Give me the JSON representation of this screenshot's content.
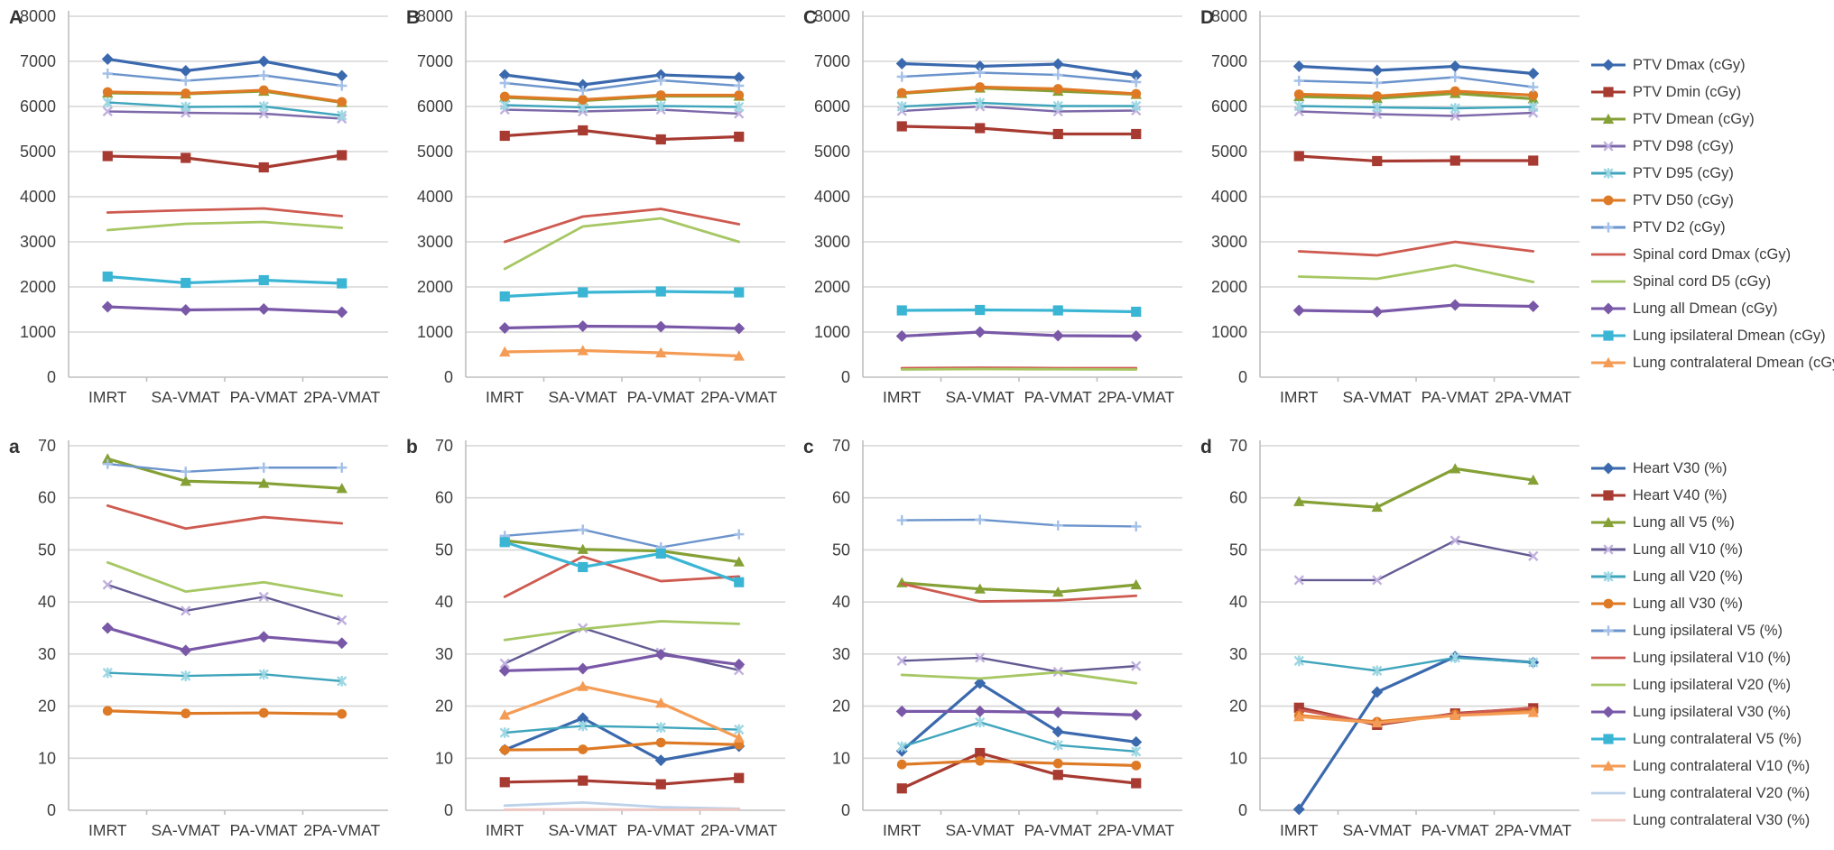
{
  "figure": {
    "description": "Eight-panel dose metric comparison line charts",
    "categories": [
      "IMRT",
      "SA-VMAT",
      "PA-VMAT",
      "2PA-VMAT"
    ],
    "grid_color": "#d6d6d6",
    "axis_color": "#bfbfbf",
    "tick_label_color": "#3f3f3f"
  },
  "chart_data": {
    "type": "line",
    "categories": [
      "IMRT",
      "SA-VMAT",
      "PA-VMAT",
      "2PA-VMAT"
    ],
    "series_top": [
      {
        "name": "PTV Dmax (cGy)",
        "color": "#3b69ae",
        "marker": "diamond"
      },
      {
        "name": "PTV Dmin (cGy)",
        "color": "#a73a31",
        "marker": "square"
      },
      {
        "name": "PTV Dmean (cGy)",
        "color": "#85a035",
        "marker": "triangle"
      },
      {
        "name": "PTV D98 (cGy)",
        "color": "#7d68a9",
        "marker": "x",
        "marker_color": "#c0b0de"
      },
      {
        "name": "PTV D95 (cGy)",
        "color": "#3fa5bc",
        "marker": "star",
        "marker_color": "#9ed7e3"
      },
      {
        "name": "PTV D50 (cGy)",
        "color": "#de7a26",
        "marker": "circle"
      },
      {
        "name": "PTV D2 (cGy)",
        "color": "#6b94cc",
        "marker": "plus",
        "marker_color": "#a3c0e8"
      },
      {
        "name": "Spinal cord Dmax (cGy)",
        "color": "#ce5a50",
        "marker": "none"
      },
      {
        "name": "Spinal cord D5 (cGy)",
        "color": "#a6c763",
        "marker": "none"
      },
      {
        "name": "Lung all Dmean (cGy)",
        "color": "#7a58a8",
        "marker": "diamond"
      },
      {
        "name": "Lung ipsilateral Dmean (cGy)",
        "color": "#3bb5d4",
        "marker": "square"
      },
      {
        "name": "Lung contralateral Dmean (cGy)",
        "color": "#f49c55",
        "marker": "triangle"
      }
    ],
    "series_bottom": [
      {
        "name": "Heart V30 (%)",
        "color": "#3b69ae",
        "marker": "diamond"
      },
      {
        "name": "Heart V40 (%)",
        "color": "#a73a31",
        "marker": "square"
      },
      {
        "name": "Lung all V5 (%)",
        "color": "#85a035",
        "marker": "triangle"
      },
      {
        "name": "Lung all V10 (%)",
        "color": "#645a93",
        "marker": "x",
        "marker_color": "#c0b0de"
      },
      {
        "name": "Lung all V20 (%)",
        "color": "#3fa5bc",
        "marker": "star",
        "marker_color": "#9ed7e3"
      },
      {
        "name": "Lung all V30 (%)",
        "color": "#de7a26",
        "marker": "circle"
      },
      {
        "name": "Lung ipsilateral V5 (%)",
        "color": "#6b94cc",
        "marker": "plus",
        "marker_color": "#a3c0e8"
      },
      {
        "name": "Lung ipsilateral V10 (%)",
        "color": "#ce5a50",
        "marker": "none"
      },
      {
        "name": "Lung ipsilateral V20 (%)",
        "color": "#a6c763",
        "marker": "none"
      },
      {
        "name": "Lung ipsilateral V30 (%)",
        "color": "#7a58a8",
        "marker": "diamond"
      },
      {
        "name": "Lung contralateral V5 (%)",
        "color": "#3bb5d4",
        "marker": "square"
      },
      {
        "name": "Lung contralateral V10 (%)",
        "color": "#f49c55",
        "marker": "triangle"
      },
      {
        "name": "Lung contralateral V20 (%)",
        "color": "#bcd2ea",
        "marker": "none"
      },
      {
        "name": "Lung contralateral V30 (%)",
        "color": "#efc7c2",
        "marker": "none"
      }
    ],
    "panels": [
      {
        "label": "A",
        "row": "top",
        "ylim": [
          0,
          8000
        ],
        "ytick": 1000,
        "values": [
          [
            7050,
            6790,
            7000,
            6680
          ],
          [
            4900,
            4860,
            4650,
            4920
          ],
          [
            6300,
            6280,
            6340,
            6090
          ],
          [
            5890,
            5860,
            5840,
            5730
          ],
          [
            6090,
            5990,
            6000,
            5800
          ],
          [
            6320,
            6290,
            6360,
            6100
          ],
          [
            6730,
            6570,
            6690,
            6460
          ],
          [
            3650,
            3700,
            3740,
            3570
          ],
          [
            3260,
            3400,
            3440,
            3310
          ],
          [
            1560,
            1490,
            1510,
            1440
          ],
          [
            2230,
            2090,
            2150,
            2080
          ],
          null
        ]
      },
      {
        "label": "B",
        "row": "top",
        "ylim": [
          0,
          8000
        ],
        "ytick": 1000,
        "values": [
          [
            6700,
            6480,
            6700,
            6640
          ],
          [
            5350,
            5470,
            5270,
            5330
          ],
          [
            6200,
            6130,
            6230,
            6230
          ],
          [
            5930,
            5890,
            5930,
            5840
          ],
          [
            6030,
            5980,
            6010,
            5990
          ],
          [
            6220,
            6150,
            6250,
            6250
          ],
          [
            6520,
            6350,
            6580,
            6460
          ],
          [
            3000,
            3560,
            3730,
            3390
          ],
          [
            2400,
            3340,
            3520,
            3000
          ],
          [
            1090,
            1130,
            1120,
            1080
          ],
          [
            1790,
            1880,
            1900,
            1880
          ],
          [
            560,
            590,
            540,
            470
          ]
        ]
      },
      {
        "label": "C",
        "row": "top",
        "ylim": [
          0,
          8000
        ],
        "ytick": 1000,
        "values": [
          [
            6950,
            6890,
            6940,
            6690
          ],
          [
            5560,
            5520,
            5390,
            5390
          ],
          [
            6290,
            6410,
            6340,
            6270
          ],
          [
            5900,
            6000,
            5890,
            5910
          ],
          [
            6000,
            6080,
            6010,
            6010
          ],
          [
            6300,
            6430,
            6390,
            6280
          ],
          [
            6660,
            6750,
            6700,
            6540
          ],
          [
            200,
            210,
            200,
            200
          ],
          [
            170,
            180,
            175,
            170
          ],
          [
            910,
            1000,
            920,
            910
          ],
          [
            1480,
            1490,
            1480,
            1450
          ],
          null
        ]
      },
      {
        "label": "D",
        "row": "top",
        "ylim": [
          0,
          8000
        ],
        "ytick": 1000,
        "values": [
          [
            6890,
            6800,
            6890,
            6730
          ],
          [
            4900,
            4790,
            4800,
            4800
          ],
          [
            6220,
            6180,
            6290,
            6170
          ],
          [
            5890,
            5830,
            5790,
            5860
          ],
          [
            6010,
            5980,
            5960,
            5990
          ],
          [
            6270,
            6230,
            6340,
            6250
          ],
          [
            6570,
            6520,
            6650,
            6430
          ],
          [
            2790,
            2700,
            3000,
            2790
          ],
          [
            2230,
            2180,
            2480,
            2110
          ],
          [
            1480,
            1450,
            1600,
            1570
          ],
          null,
          null
        ]
      },
      {
        "label": "a",
        "row": "bottom",
        "ylim": [
          0,
          70
        ],
        "ytick": 10,
        "values": [
          null,
          null,
          [
            67.5,
            63.2,
            62.8,
            61.8
          ],
          [
            43.3,
            38.3,
            41.0,
            36.5
          ],
          [
            26.4,
            25.8,
            26.1,
            24.8
          ],
          [
            19.1,
            18.6,
            18.7,
            18.5
          ],
          [
            66.5,
            65.0,
            65.8,
            65.8
          ],
          [
            58.5,
            54.1,
            56.3,
            55.1
          ],
          [
            47.6,
            42.0,
            43.8,
            41.2
          ],
          [
            35.0,
            30.7,
            33.3,
            32.1
          ],
          null,
          null,
          null,
          null
        ]
      },
      {
        "label": "b",
        "row": "bottom",
        "ylim": [
          0,
          70
        ],
        "ytick": 10,
        "values": [
          [
            11.6,
            17.7,
            9.6,
            12.3
          ],
          [
            5.4,
            5.7,
            5.0,
            6.2
          ],
          [
            51.8,
            50.1,
            49.8,
            47.7
          ],
          [
            28.2,
            35.0,
            30.3,
            26.9
          ],
          [
            14.9,
            16.2,
            15.9,
            15.5
          ],
          [
            11.6,
            11.7,
            13.0,
            12.6
          ],
          [
            52.7,
            53.9,
            50.5,
            53.0
          ],
          [
            41.0,
            48.7,
            44.0,
            44.9
          ],
          [
            32.7,
            34.8,
            36.3,
            35.8
          ],
          [
            26.8,
            27.2,
            29.9,
            28.0
          ],
          [
            51.5,
            46.7,
            49.3,
            43.8
          ],
          [
            18.3,
            23.8,
            20.6,
            13.9
          ],
          [
            0.9,
            1.5,
            0.6,
            0.3
          ],
          [
            0.1,
            0.2,
            0.1,
            0.2
          ]
        ]
      },
      {
        "label": "c",
        "row": "bottom",
        "ylim": [
          0,
          70
        ],
        "ytick": 10,
        "values": [
          [
            11.4,
            24.4,
            15.1,
            13.1
          ],
          [
            4.2,
            11.0,
            6.8,
            5.2
          ],
          [
            43.7,
            42.5,
            41.9,
            43.3
          ],
          [
            28.7,
            29.3,
            26.6,
            27.7
          ],
          [
            12.2,
            16.9,
            12.5,
            11.3
          ],
          [
            8.8,
            9.5,
            9.0,
            8.6
          ],
          [
            55.7,
            55.8,
            54.7,
            54.5
          ],
          [
            43.5,
            40.1,
            40.3,
            41.2
          ],
          [
            26.0,
            25.3,
            26.5,
            24.4
          ],
          [
            19.0,
            19.0,
            18.8,
            18.3
          ],
          null,
          null,
          null,
          null
        ]
      },
      {
        "label": "d",
        "row": "bottom",
        "ylim": [
          0,
          70
        ],
        "ytick": 10,
        "values": [
          [
            0.2,
            22.7,
            29.5,
            28.4
          ],
          [
            19.7,
            16.4,
            18.6,
            19.6
          ],
          [
            59.3,
            58.2,
            65.6,
            63.4
          ],
          [
            44.2,
            44.2,
            51.8,
            48.8
          ],
          [
            28.7,
            26.8,
            29.3,
            28.4
          ],
          [
            18.2,
            17.0,
            18.4,
            19.0
          ],
          null,
          [
            19.3,
            16.6,
            18.5,
            19.7
          ],
          null,
          null,
          null,
          [
            18.0,
            16.8,
            18.2,
            18.8
          ],
          null,
          null
        ]
      }
    ],
    "legend_position": "right",
    "grid": true
  }
}
